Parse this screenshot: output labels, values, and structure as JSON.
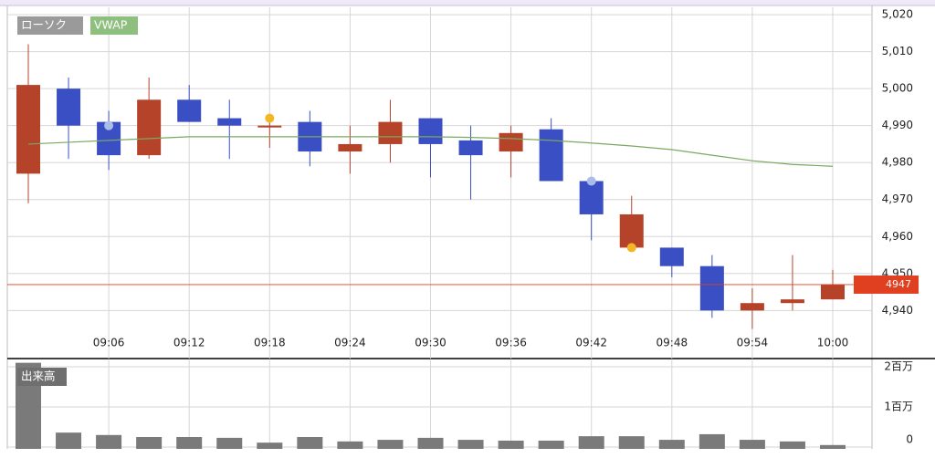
{
  "chart_data": {
    "type": "candlestick",
    "candle_label": "ローソク",
    "up_color": "#b5432a",
    "down_color": "#3a4fc4",
    "categories": [
      null,
      null,
      "09:06",
      null,
      "09:12",
      null,
      "09:18",
      null,
      "09:24",
      null,
      "09:30",
      null,
      "09:36",
      null,
      "09:42",
      null,
      "09:48",
      null,
      "09:54",
      null,
      "10:00"
    ],
    "open": [
      4977,
      5000,
      4991,
      4982,
      4997,
      4992,
      4989.5,
      4991,
      4983,
      4985,
      4992,
      4986,
      4983,
      4989,
      4975,
      4957,
      4957,
      4952,
      4940,
      4942,
      4943
    ],
    "high": [
      5012,
      5003,
      4994,
      5003,
      5001,
      4997,
      4992,
      4994,
      4990,
      4997,
      4992,
      4990,
      4990,
      4992,
      4976,
      4971,
      4957,
      4955,
      4946,
      4955,
      4951
    ],
    "low": [
      4969,
      4981,
      4978,
      4981,
      4991,
      4981,
      4984,
      4979,
      4977,
      4980,
      4976,
      4970,
      4976,
      4975,
      4959,
      4957,
      4949,
      4938,
      4935,
      4940,
      4943
    ],
    "close": [
      5001,
      4990,
      4982,
      4997,
      4991,
      4990,
      4990,
      4983,
      4985,
      4991,
      4985,
      4982,
      4988,
      4975,
      4966,
      4966,
      4952,
      4940,
      4942,
      4943,
      4947
    ],
    "vwap": {
      "name": "VWAP",
      "color": "#7aa860",
      "values": [
        4985,
        4985.5,
        4986,
        4986.5,
        4987,
        4987,
        4987,
        4987,
        4987,
        4987,
        4987,
        4986.8,
        4986.5,
        4986,
        4985.3,
        4984.5,
        4983.5,
        4982,
        4980.5,
        4979.5,
        4979
      ]
    },
    "markers": [
      {
        "index": 2,
        "value": 4990,
        "color": "#a9bde8"
      },
      {
        "index": 6,
        "value": 4992,
        "color": "#f2b824"
      },
      {
        "index": 14,
        "value": 4975,
        "color": "#a9bde8"
      },
      {
        "index": 15,
        "value": 4957,
        "color": "#f2b824"
      }
    ],
    "last_price": 4947,
    "last_price_color": "#e0401f",
    "ylim": [
      4927,
      5022
    ],
    "yticks": [
      {
        "value": 4940,
        "label": "4,940"
      },
      {
        "value": 4950,
        "label": "4,950"
      },
      {
        "value": 4960,
        "label": "4,960"
      },
      {
        "value": 4970,
        "label": "4,970"
      },
      {
        "value": 4980,
        "label": "4,980"
      },
      {
        "value": 4990,
        "label": "4,990"
      },
      {
        "value": 5000,
        "label": "5,000"
      },
      {
        "value": 5010,
        "label": "5,010"
      },
      {
        "value": 5020,
        "label": "5,020"
      }
    ],
    "grid": true,
    "volume": {
      "name": "出来高",
      "color": "#7a7a7a",
      "values": [
        2100000,
        360000,
        300000,
        250000,
        250000,
        230000,
        110000,
        250000,
        140000,
        180000,
        230000,
        180000,
        160000,
        160000,
        270000,
        270000,
        180000,
        320000,
        180000,
        140000,
        50000
      ],
      "ylim": [
        0,
        2160000
      ],
      "yticks": [
        0,
        {
          "value": 1000000,
          "label": "1百万"
        },
        {
          "value": 2000000,
          "label": "2百万"
        }
      ]
    }
  }
}
